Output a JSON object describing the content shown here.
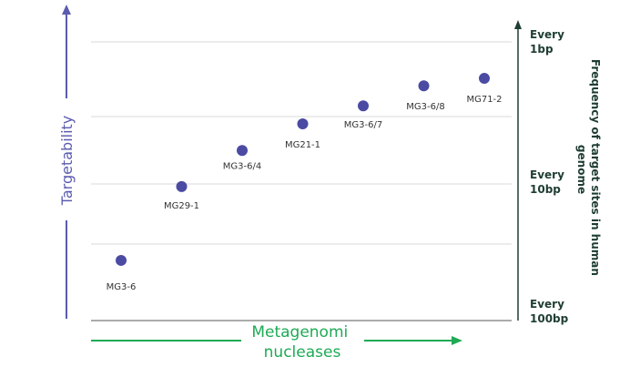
{
  "colors": {
    "left_axis": "#5b5bb0",
    "bottom_axis": "#1faa55",
    "right_axis": "#1f3d33",
    "gridline": "#d9d9d9",
    "baseline": "#8f8f8f",
    "point": "#4b4ba3",
    "label": "#333333"
  },
  "chart_data": {
    "type": "scatter",
    "ylabel_left": "Targetability",
    "ylabel_right": "Frequency of target sites in human genome",
    "xlabel": "Metagenomi nucleases",
    "right_ticks": [
      {
        "lines": [
          "Every",
          "100bp"
        ],
        "y": 100
      },
      {
        "lines": [
          "Every",
          "10bp"
        ],
        "y": 10
      },
      {
        "lines": [
          "Every",
          "1bp"
        ],
        "y": 1
      }
    ],
    "y_scale": "log-reversed",
    "y_range": [
      100,
      1
    ],
    "points": [
      {
        "label": "MG3-6",
        "y": 40
      },
      {
        "label": "MG29-1",
        "y": 13
      },
      {
        "label": "MG3-6/4",
        "y": 7.5
      },
      {
        "label": "MG21-1",
        "y": 5
      },
      {
        "label": "MG3-6/7",
        "y": 3.8
      },
      {
        "label": "MG3-6/8",
        "y": 2.8
      },
      {
        "label": "MG71-2",
        "y": 2.5
      }
    ]
  }
}
